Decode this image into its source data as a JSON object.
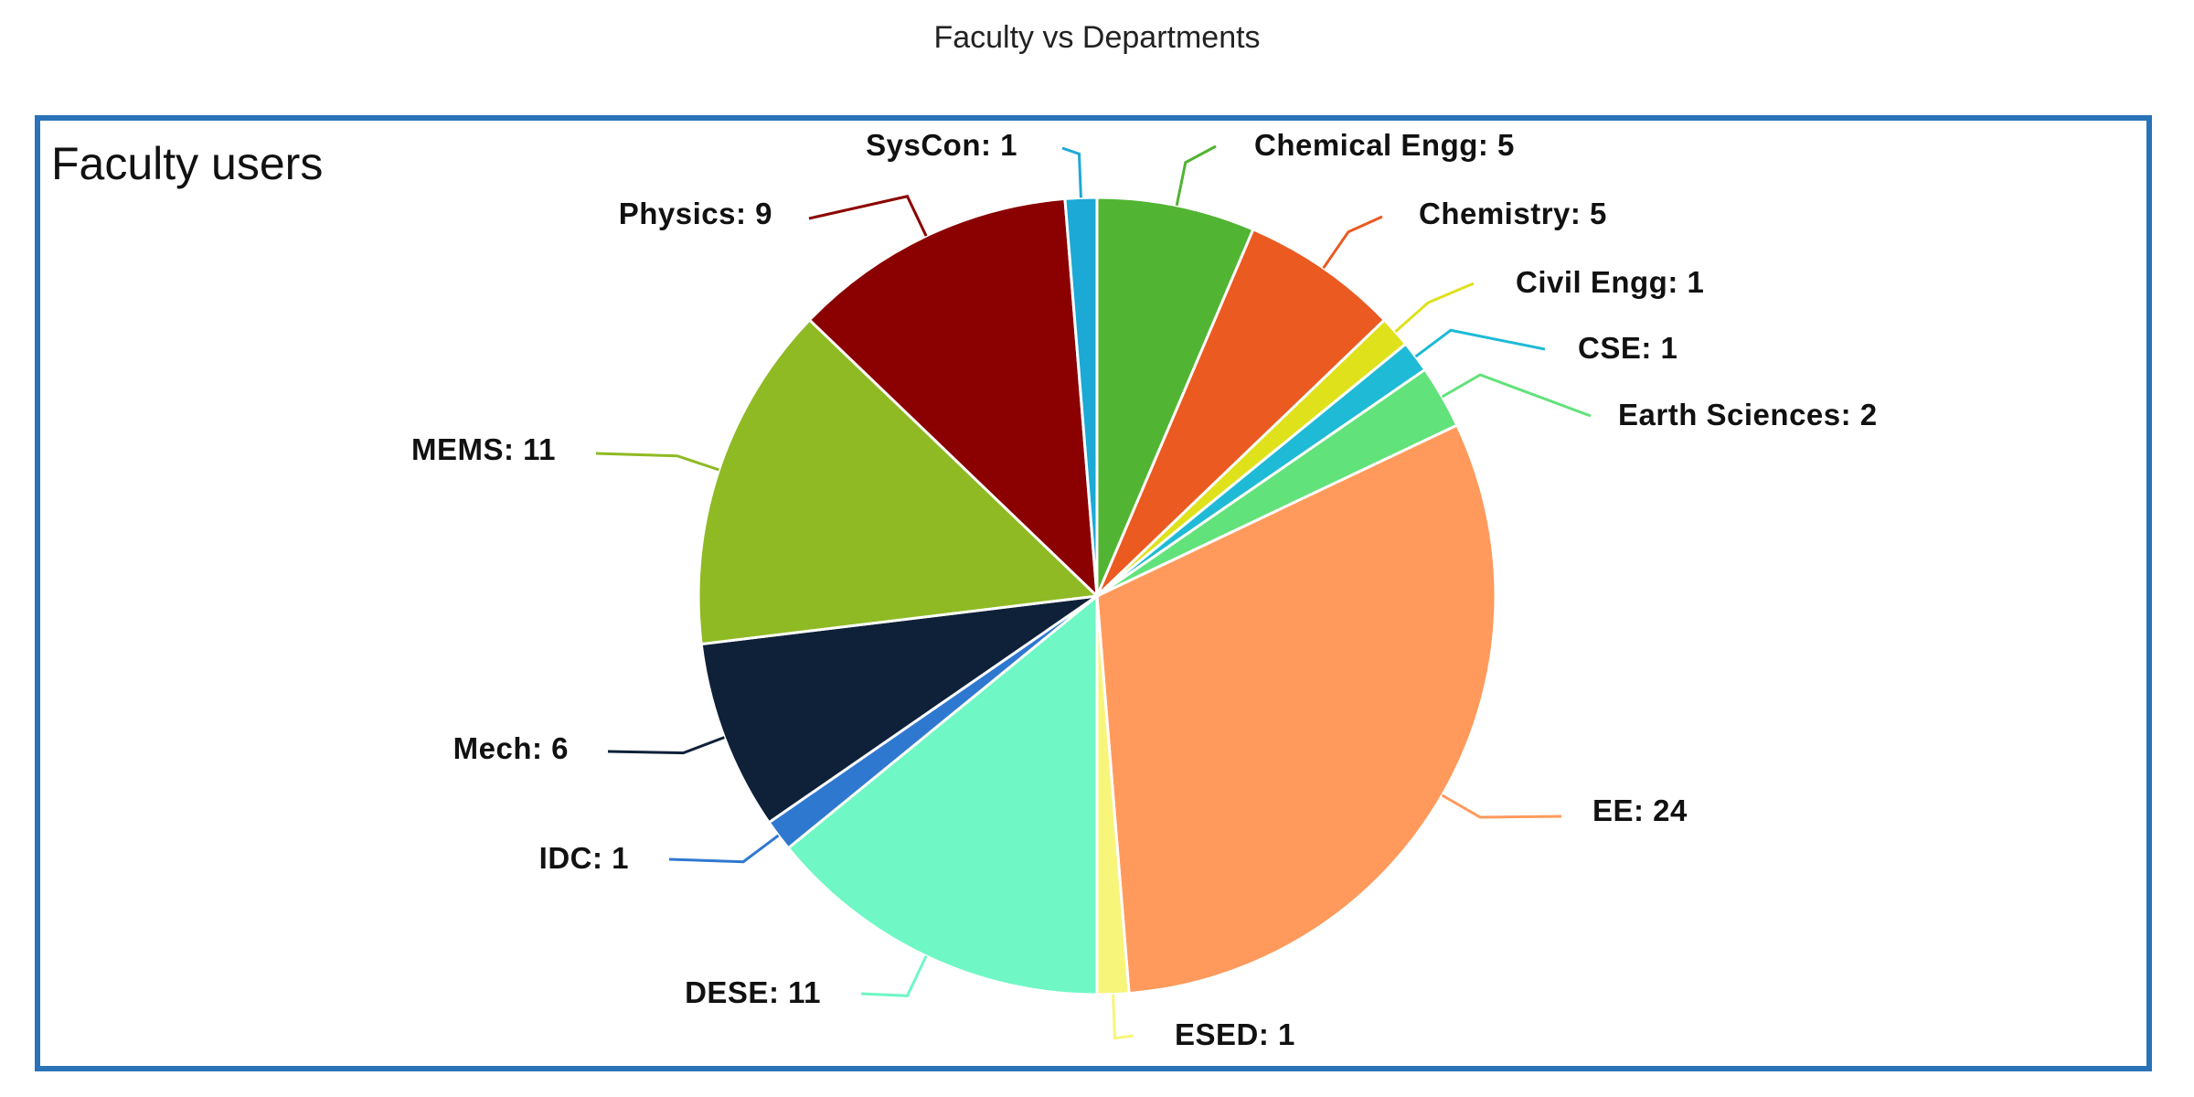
{
  "page": {
    "title": "Faculty vs Departments"
  },
  "chart_data": {
    "type": "pie",
    "title": "Faculty users",
    "start_angle_deg": 0,
    "direction": "clockwise",
    "slices": [
      {
        "label": "Chemical Engg",
        "value": 5,
        "color": "#52b433"
      },
      {
        "label": "Chemistry",
        "value": 5,
        "color": "#ea5a21"
      },
      {
        "label": "Civil Engg",
        "value": 1,
        "color": "#dfe11b"
      },
      {
        "label": "CSE",
        "value": 1,
        "color": "#1fbad6"
      },
      {
        "label": "Earth Sciences",
        "value": 2,
        "color": "#62e27a"
      },
      {
        "label": "EE",
        "value": 24,
        "color": "#ff9a5c"
      },
      {
        "label": "ESED",
        "value": 1,
        "color": "#f7f57a"
      },
      {
        "label": "DESE",
        "value": 11,
        "color": "#6ff7c6"
      },
      {
        "label": "IDC",
        "value": 1,
        "color": "#2f78d0"
      },
      {
        "label": "Mech",
        "value": 6,
        "color": "#0f2138"
      },
      {
        "label": "MEMS",
        "value": 11,
        "color": "#8fba24"
      },
      {
        "label": "Physics",
        "value": 9,
        "color": "#8b0000"
      },
      {
        "label": "SysCon",
        "value": 1,
        "color": "#1da9d6"
      }
    ],
    "label_format": "{label}: {value}",
    "legend": "none"
  }
}
